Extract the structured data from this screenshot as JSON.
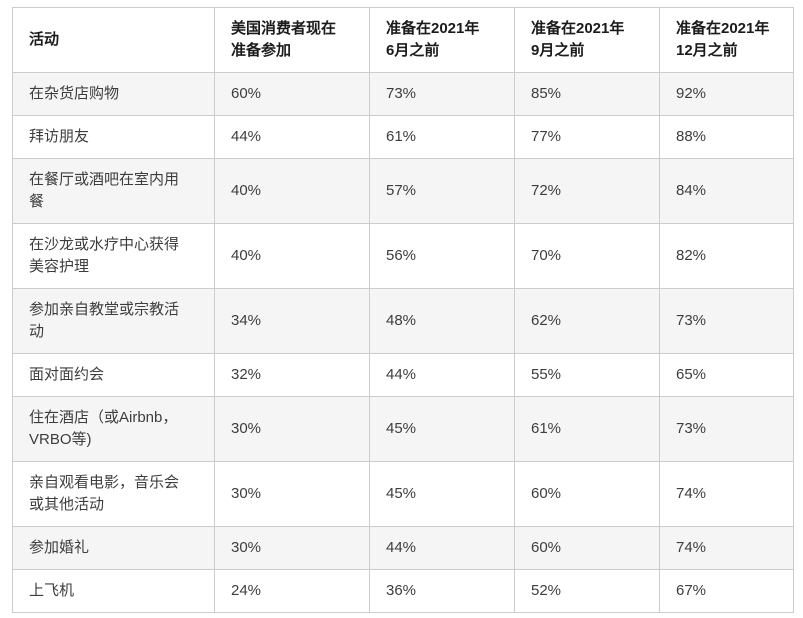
{
  "page": {
    "background": "#ffffff"
  },
  "chart_data": {
    "type": "table",
    "columns": [
      "活动",
      "美国消费者现在\n准备参加",
      "准备在2021年\n6月之前",
      "准备在2021年\n9月之前",
      "准备在2021年\n12月之前"
    ],
    "rows": [
      {
        "activity": "在杂货店购物",
        "values": [
          "60%",
          "73%",
          "85%",
          "92%"
        ]
      },
      {
        "activity": "拜访朋友",
        "values": [
          "44%",
          "61%",
          "77%",
          "88%"
        ]
      },
      {
        "activity": "在餐厅或酒吧在室内用\n餐",
        "values": [
          "40%",
          "57%",
          "72%",
          "84%"
        ]
      },
      {
        "activity": "在沙龙或水疗中心获得\n美容护理",
        "values": [
          "40%",
          "56%",
          "70%",
          "82%"
        ]
      },
      {
        "activity": "参加亲自教堂或宗教活\n动",
        "values": [
          "34%",
          "48%",
          "62%",
          "73%"
        ]
      },
      {
        "activity": "面对面约会",
        "values": [
          "32%",
          "44%",
          "55%",
          "65%"
        ]
      },
      {
        "activity": "住在酒店（或Airbnb，\nVRBO等)",
        "values": [
          "30%",
          "45%",
          "61%",
          "73%"
        ]
      },
      {
        "activity": "亲自观看电影，音乐会\n或其他活动",
        "values": [
          "30%",
          "45%",
          "60%",
          "74%"
        ]
      },
      {
        "activity": "参加婚礼",
        "values": [
          "30%",
          "44%",
          "60%",
          "74%"
        ]
      },
      {
        "activity": "上飞机",
        "values": [
          "24%",
          "36%",
          "52%",
          "67%"
        ]
      }
    ],
    "numeric": {
      "unit": "%",
      "categories": [
        "在杂货店购物",
        "拜访朋友",
        "在餐厅或酒吧在室内用餐",
        "在沙龙或水疗中心获得美容护理",
        "参加亲自教堂或宗教活动",
        "面对面约会",
        "住在酒店（或Airbnb，VRBO等)",
        "亲自观看电影，音乐会或其他活动",
        "参加婚礼",
        "上飞机"
      ],
      "series": [
        {
          "name": "美国消费者现在准备参加",
          "values": [
            60,
            44,
            40,
            40,
            34,
            32,
            30,
            30,
            30,
            24
          ]
        },
        {
          "name": "准备在2021年6月之前",
          "values": [
            73,
            61,
            57,
            56,
            48,
            44,
            45,
            45,
            44,
            36
          ]
        },
        {
          "name": "准备在2021年9月之前",
          "values": [
            85,
            77,
            72,
            70,
            62,
            55,
            61,
            60,
            60,
            52
          ]
        },
        {
          "name": "准备在2021年12月之前",
          "values": [
            92,
            88,
            84,
            82,
            73,
            65,
            73,
            74,
            74,
            67
          ]
        }
      ]
    },
    "colors": {
      "zebra_row": "#f5f5f5",
      "border": "#cccccc",
      "header_text": "#1b1b1b",
      "body_text": "#3d3d3d"
    }
  }
}
